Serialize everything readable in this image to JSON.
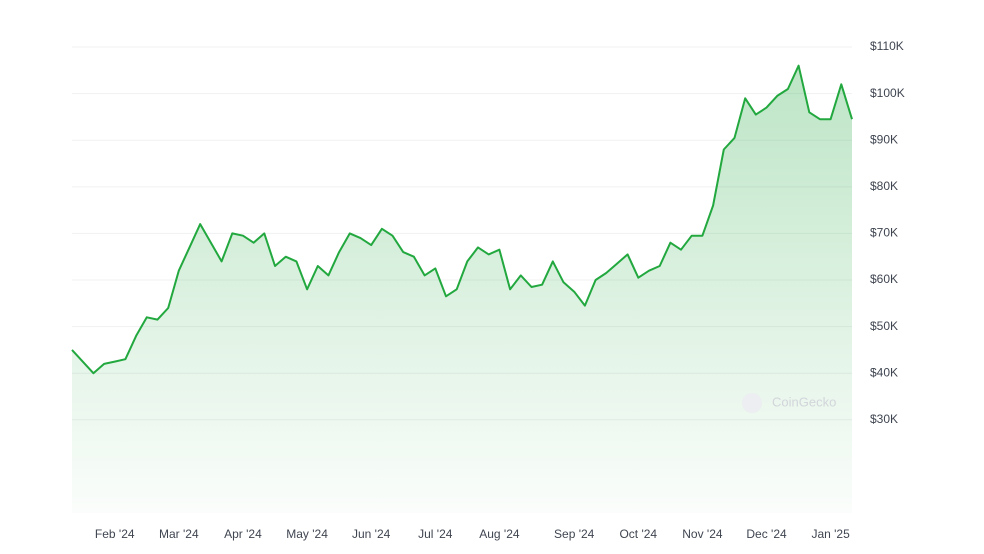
{
  "chart_data": {
    "type": "area",
    "watermark": "CoinGecko",
    "color": "#22a83f",
    "grid": true,
    "categories": [
      null,
      null,
      null,
      null,
      "Feb '24",
      null,
      null,
      null,
      null,
      null,
      "Mar '24",
      null,
      null,
      null,
      null,
      null,
      "Apr '24",
      null,
      null,
      null,
      null,
      null,
      "May '24",
      null,
      null,
      null,
      null,
      null,
      "Jun '24",
      null,
      null,
      null,
      null,
      null,
      "Jul '24",
      null,
      null,
      null,
      null,
      null,
      "Aug '24",
      null,
      null,
      null,
      null,
      null,
      null,
      "Sep '24",
      null,
      null,
      null,
      null,
      null,
      "Oct '24",
      null,
      null,
      null,
      null,
      null,
      "Nov '24",
      null,
      null,
      null,
      null,
      null,
      "Dec '24",
      null,
      null,
      null,
      null,
      null,
      "Jan '25",
      null,
      null
    ],
    "values": [
      45000,
      42500,
      40000,
      42000,
      42500,
      43000,
      48000,
      52000,
      51500,
      54000,
      62000,
      67000,
      72000,
      68000,
      64000,
      70000,
      69500,
      68000,
      70000,
      63000,
      65000,
      64000,
      58000,
      63000,
      61000,
      66000,
      70000,
      69000,
      67500,
      71000,
      69500,
      66000,
      65000,
      61000,
      62500,
      56500,
      58000,
      64000,
      67000,
      65500,
      66500,
      58000,
      61000,
      58500,
      59000,
      64000,
      59500,
      57500,
      54500,
      60000,
      61500,
      63500,
      65500,
      60500,
      62000,
      63000,
      68000,
      66500,
      69500,
      69500,
      76000,
      88000,
      90500,
      99000,
      95500,
      97000,
      99500,
      101000,
      106000,
      96000,
      94500,
      94500,
      102000,
      94500
    ],
    "ylim": [
      10000,
      112000
    ],
    "yticks": [
      {
        "value": 30000,
        "label": "$30K"
      },
      {
        "value": 40000,
        "label": "$40K"
      },
      {
        "value": 50000,
        "label": "$50K"
      },
      {
        "value": 60000,
        "label": "$60K"
      },
      {
        "value": 70000,
        "label": "$70K"
      },
      {
        "value": 80000,
        "label": "$80K"
      },
      {
        "value": 90000,
        "label": "$90K"
      },
      {
        "value": 100000,
        "label": "$100K"
      },
      {
        "value": 110000,
        "label": "$110K"
      }
    ]
  }
}
